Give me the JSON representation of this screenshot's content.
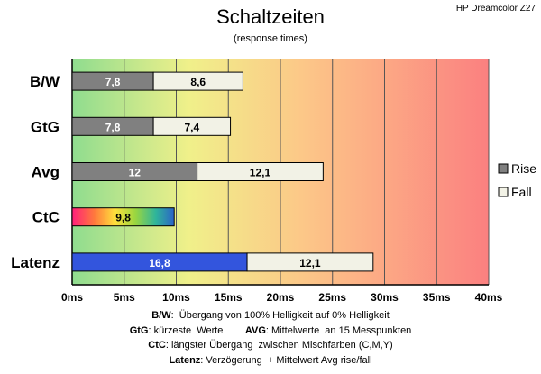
{
  "corner_label": "HP Dreamcolor Z27",
  "chart_data": {
    "type": "bar",
    "orientation": "horizontal",
    "stacked": true,
    "title": "Schaltzeiten",
    "subtitle": "(response times)",
    "categories": [
      "B/W",
      "GtG",
      "Avg",
      "CtC",
      "Latenz"
    ],
    "series": [
      {
        "name": "Rise",
        "values": [
          7.8,
          7.8,
          12,
          9.8,
          16.8
        ],
        "labels": [
          "7,8",
          "7,8",
          "12",
          "9,8",
          "16,8"
        ],
        "color": "#808080"
      },
      {
        "name": "Fall",
        "values": [
          8.6,
          7.4,
          12.1,
          null,
          12.1
        ],
        "labels": [
          "8,6",
          "7,4",
          "12,1",
          "",
          "12,1"
        ],
        "color": "#f2f2e6"
      }
    ],
    "special_fills": {
      "CtC": "rainbow",
      "Latenz": "#3355dd"
    },
    "xlim": [
      0,
      40
    ],
    "xticks": [
      0,
      5,
      10,
      15,
      20,
      25,
      30,
      35,
      40
    ],
    "xtick_labels": [
      "0ms",
      "5ms",
      "10ms",
      "15ms",
      "20ms",
      "25ms",
      "30ms",
      "35ms",
      "40ms"
    ],
    "grid": true,
    "legend": "right",
    "background": "gradient green-yellow-orange-red"
  },
  "notes": [
    {
      "b1": "B/W",
      "t1": ":  Übergang von 100% Helligkeit auf 0% Helligkeit"
    },
    {
      "b1": "GtG",
      "t1": ": kürzeste  Werte        ",
      "b2": "AVG",
      "t2": ": Mittelwerte  an 15 Messpunkten"
    },
    {
      "b1": "CtC",
      "t1": ": längster Übergang  zwischen Mischfarben (C,M,Y)"
    },
    {
      "b1": "Latenz",
      "t1": ": Verzögerung  + Mittelwert Avg rise/fall"
    }
  ]
}
